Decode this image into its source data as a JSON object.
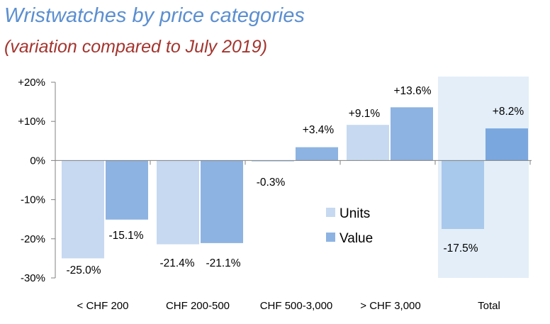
{
  "title": "Wristwatches by price categories",
  "subtitle": "(variation compared to July 2019)",
  "chart_data": {
    "type": "bar",
    "title": "Wristwatches by price categories",
    "subtitle": "(variation compared to July 2019)",
    "categories": [
      "< CHF 200",
      "CHF 200-500",
      "CHF 500-3,000",
      "> CHF 3,000",
      "Total"
    ],
    "series": [
      {
        "name": "Units",
        "values": [
          -25.0,
          -21.4,
          -0.3,
          9.1,
          -17.5
        ],
        "labels": [
          "-25.0%",
          "-21.4%",
          "-0.3%",
          "+9.1%",
          "-17.5%"
        ],
        "color": "#c6d9f1",
        "total_color": "#a9c9ec"
      },
      {
        "name": "Value",
        "values": [
          -15.1,
          -21.1,
          3.4,
          13.6,
          8.2
        ],
        "labels": [
          "-15.1%",
          "-21.1%",
          "+3.4%",
          "+13.6%",
          "+8.2%"
        ],
        "color": "#8db3e2",
        "total_color": "#7aa7de"
      }
    ],
    "yticks": [
      "+20%",
      "+10%",
      "0%",
      "-10%",
      "-20%",
      "-30%"
    ],
    "ytick_values": [
      20,
      10,
      0,
      -10,
      -20,
      -30
    ],
    "ylim": [
      -30,
      20
    ],
    "xlabel": "",
    "ylabel": "",
    "legend_position": "center-right",
    "grid": false,
    "highlight_category": "Total",
    "highlight_color": "#e3eef8"
  }
}
